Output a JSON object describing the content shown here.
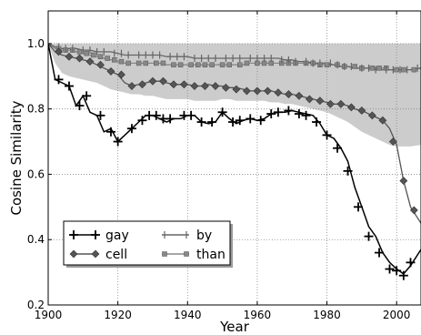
{
  "chart_data": {
    "type": "line",
    "title": "",
    "xlabel": "Year",
    "ylabel": "Cosine Similarity",
    "xlim": [
      1900,
      2007
    ],
    "ylim": [
      0.2,
      1.1
    ],
    "xticks": [
      1900,
      1920,
      1940,
      1960,
      1980,
      2000
    ],
    "yticks": [
      0.2,
      0.4,
      0.6,
      0.8,
      1.0
    ],
    "xtick_labels": [
      "1900",
      "1920",
      "1940",
      "1960",
      "1980",
      "2000"
    ],
    "ytick_labels": [
      "0.2",
      "0.4",
      "0.6",
      "0.8",
      "1.0"
    ],
    "grid": true,
    "legend_position": "lower-left",
    "series": [
      {
        "name": "gay",
        "color": "#000000",
        "marker": "plus",
        "x": [
          1900,
          1902,
          1904,
          1906,
          1908,
          1910,
          1912,
          1914,
          1916,
          1918,
          1920,
          1922,
          1924,
          1926,
          1928,
          1930,
          1932,
          1934,
          1936,
          1938,
          1940,
          1942,
          1944,
          1946,
          1948,
          1950,
          1952,
          1954,
          1956,
          1958,
          1960,
          1962,
          1964,
          1966,
          1968,
          1970,
          1972,
          1974,
          1976,
          1978,
          1980,
          1982,
          1984,
          1986,
          1988,
          1990,
          1992,
          1994,
          1996,
          1998,
          2000,
          2002,
          2004,
          2007
        ],
        "y": [
          1.0,
          0.89,
          0.88,
          0.87,
          0.81,
          0.84,
          0.79,
          0.78,
          0.73,
          0.74,
          0.7,
          0.72,
          0.74,
          0.76,
          0.78,
          0.78,
          0.77,
          0.76,
          0.77,
          0.77,
          0.78,
          0.78,
          0.76,
          0.755,
          0.76,
          0.79,
          0.77,
          0.755,
          0.765,
          0.77,
          0.765,
          0.77,
          0.785,
          0.79,
          0.79,
          0.795,
          0.79,
          0.785,
          0.78,
          0.755,
          0.72,
          0.71,
          0.68,
          0.64,
          0.56,
          0.5,
          0.44,
          0.41,
          0.36,
          0.33,
          0.31,
          0.295,
          0.32,
          0.37
        ],
        "marker_x": [
          1903,
          1906,
          1909,
          1911,
          1915,
          1918,
          1920,
          1924,
          1927,
          1929,
          1931,
          1933,
          1935,
          1939,
          1941,
          1944,
          1947,
          1950,
          1953,
          1955,
          1958,
          1961,
          1964,
          1966,
          1969,
          1972,
          1974,
          1977,
          1980,
          1983,
          1986,
          1989,
          1992,
          1995,
          1998,
          2000,
          2002,
          2004
        ],
        "marker_y": [
          0.89,
          0.87,
          0.81,
          0.84,
          0.78,
          0.73,
          0.7,
          0.74,
          0.765,
          0.78,
          0.78,
          0.77,
          0.77,
          0.78,
          0.78,
          0.76,
          0.76,
          0.79,
          0.76,
          0.765,
          0.77,
          0.765,
          0.785,
          0.79,
          0.795,
          0.785,
          0.78,
          0.76,
          0.72,
          0.68,
          0.61,
          0.5,
          0.41,
          0.36,
          0.31,
          0.305,
          0.29,
          0.33
        ],
        "band": null
      },
      {
        "name": "cell",
        "color": "#555555",
        "marker": "diamond",
        "x": [
          1900,
          1902,
          1904,
          1906,
          1908,
          1910,
          1912,
          1914,
          1916,
          1918,
          1920,
          1922,
          1924,
          1926,
          1928,
          1930,
          1932,
          1934,
          1936,
          1938,
          1940,
          1942,
          1944,
          1946,
          1948,
          1950,
          1952,
          1954,
          1956,
          1958,
          1960,
          1962,
          1964,
          1966,
          1968,
          1970,
          1972,
          1974,
          1976,
          1978,
          1980,
          1982,
          1984,
          1986,
          1988,
          1990,
          1992,
          1994,
          1996,
          1998,
          2000,
          2002,
          2004,
          2007
        ],
        "y": [
          1.0,
          0.975,
          0.965,
          0.96,
          0.955,
          0.95,
          0.945,
          0.935,
          0.925,
          0.915,
          0.905,
          0.88,
          0.87,
          0.875,
          0.88,
          0.885,
          0.885,
          0.88,
          0.875,
          0.875,
          0.875,
          0.87,
          0.87,
          0.875,
          0.87,
          0.87,
          0.865,
          0.865,
          0.86,
          0.855,
          0.855,
          0.855,
          0.855,
          0.85,
          0.845,
          0.845,
          0.84,
          0.835,
          0.83,
          0.825,
          0.82,
          0.815,
          0.815,
          0.81,
          0.8,
          0.795,
          0.785,
          0.775,
          0.765,
          0.74,
          0.69,
          0.58,
          0.5,
          0.45
        ],
        "marker_x": [
          1903,
          1906,
          1909,
          1912,
          1915,
          1918,
          1921,
          1924,
          1927,
          1930,
          1933,
          1936,
          1939,
          1942,
          1945,
          1948,
          1951,
          1954,
          1957,
          1960,
          1963,
          1966,
          1969,
          1972,
          1975,
          1978,
          1981,
          1984,
          1987,
          1990,
          1993,
          1996,
          1999,
          2002,
          2005
        ],
        "marker_y": [
          0.975,
          0.96,
          0.955,
          0.945,
          0.935,
          0.915,
          0.905,
          0.87,
          0.875,
          0.885,
          0.885,
          0.875,
          0.875,
          0.87,
          0.87,
          0.87,
          0.865,
          0.86,
          0.855,
          0.855,
          0.855,
          0.85,
          0.845,
          0.84,
          0.83,
          0.825,
          0.815,
          0.815,
          0.805,
          0.795,
          0.78,
          0.765,
          0.7,
          0.58,
          0.49
        ],
        "band": null
      },
      {
        "name": "by",
        "color": "#666666",
        "marker": "vbar",
        "x": [
          1900,
          1902,
          1904,
          1906,
          1908,
          1910,
          1912,
          1914,
          1916,
          1918,
          1920,
          1922,
          1924,
          1926,
          1928,
          1930,
          1932,
          1934,
          1936,
          1938,
          1940,
          1942,
          1944,
          1946,
          1948,
          1950,
          1952,
          1954,
          1956,
          1958,
          1960,
          1962,
          1964,
          1966,
          1968,
          1970,
          1972,
          1974,
          1976,
          1978,
          1980,
          1982,
          1984,
          1986,
          1988,
          1990,
          1992,
          1994,
          1996,
          1998,
          2000,
          2002,
          2004,
          2007
        ],
        "y": [
          1.0,
          0.99,
          0.985,
          0.985,
          0.985,
          0.98,
          0.98,
          0.975,
          0.975,
          0.975,
          0.97,
          0.965,
          0.965,
          0.965,
          0.965,
          0.965,
          0.965,
          0.96,
          0.96,
          0.96,
          0.96,
          0.955,
          0.955,
          0.955,
          0.955,
          0.955,
          0.955,
          0.955,
          0.955,
          0.955,
          0.955,
          0.955,
          0.955,
          0.955,
          0.95,
          0.95,
          0.945,
          0.945,
          0.94,
          0.94,
          0.94,
          0.935,
          0.93,
          0.93,
          0.925,
          0.925,
          0.925,
          0.92,
          0.92,
          0.92,
          0.92,
          0.92,
          0.92,
          0.925
        ],
        "marker_x": [
          1903,
          1905,
          1907,
          1910,
          1912,
          1914,
          1916,
          1919,
          1921,
          1923,
          1926,
          1928,
          1930,
          1932,
          1935,
          1937,
          1939,
          1942,
          1944,
          1946,
          1948,
          1951,
          1953,
          1955,
          1958,
          1960,
          1962,
          1964,
          1967,
          1969,
          1971,
          1974,
          1976,
          1978,
          1981,
          1983,
          1985,
          1987,
          1990,
          1992,
          1994,
          1997,
          1999,
          2001,
          2003,
          2006
        ],
        "marker_y": [
          0.99,
          0.985,
          0.985,
          0.98,
          0.98,
          0.975,
          0.975,
          0.97,
          0.97,
          0.965,
          0.965,
          0.965,
          0.965,
          0.965,
          0.96,
          0.96,
          0.96,
          0.955,
          0.955,
          0.955,
          0.955,
          0.955,
          0.955,
          0.955,
          0.955,
          0.955,
          0.955,
          0.955,
          0.95,
          0.95,
          0.945,
          0.945,
          0.94,
          0.94,
          0.94,
          0.935,
          0.93,
          0.93,
          0.925,
          0.925,
          0.92,
          0.92,
          0.92,
          0.92,
          0.92,
          0.925
        ],
        "band": {
          "fill": "#cccccc",
          "lower": [
            1.0,
            0.975,
            0.97,
            0.965,
            0.96,
            0.955,
            0.955,
            0.95,
            0.945,
            0.94,
            0.935,
            0.93,
            0.93,
            0.925,
            0.925,
            0.925,
            0.92,
            0.915,
            0.915,
            0.91,
            0.91,
            0.905,
            0.905,
            0.905,
            0.905,
            0.905,
            0.905,
            0.905,
            0.9,
            0.9,
            0.9,
            0.9,
            0.9,
            0.9,
            0.895,
            0.89,
            0.885,
            0.88,
            0.875,
            0.87,
            0.865,
            0.86,
            0.855,
            0.85,
            0.845,
            0.84,
            0.84,
            0.835,
            0.83,
            0.83,
            0.83,
            0.83,
            0.83,
            0.83
          ],
          "upper": [
            1.0,
            1.0,
            1.0,
            1.0,
            1.0,
            1.0,
            1.0,
            1.0,
            1.0,
            1.0,
            1.0,
            1.0,
            1.0,
            1.0,
            1.0,
            1.0,
            1.0,
            1.0,
            1.0,
            1.0,
            1.0,
            1.0,
            1.0,
            1.0,
            1.0,
            1.0,
            1.0,
            1.0,
            1.0,
            1.0,
            1.0,
            1.0,
            1.0,
            1.0,
            1.0,
            1.0,
            1.0,
            1.0,
            1.0,
            1.0,
            1.0,
            1.0,
            1.0,
            1.0,
            1.0,
            1.0,
            1.0,
            1.0,
            1.0,
            1.0,
            1.0,
            1.0,
            1.0,
            1.0
          ]
        }
      },
      {
        "name": "than",
        "color": "#888888",
        "marker": "square",
        "x": [
          1900,
          1902,
          1904,
          1906,
          1908,
          1910,
          1912,
          1914,
          1916,
          1918,
          1920,
          1922,
          1924,
          1926,
          1928,
          1930,
          1932,
          1934,
          1936,
          1938,
          1940,
          1942,
          1944,
          1946,
          1948,
          1950,
          1952,
          1954,
          1956,
          1958,
          1960,
          1962,
          1964,
          1966,
          1968,
          1970,
          1972,
          1974,
          1976,
          1978,
          1980,
          1982,
          1984,
          1986,
          1988,
          1990,
          1992,
          1994,
          1996,
          1998,
          2000,
          2002,
          2004,
          2007
        ],
        "y": [
          1.0,
          0.985,
          0.98,
          0.98,
          0.975,
          0.97,
          0.965,
          0.96,
          0.955,
          0.95,
          0.945,
          0.94,
          0.94,
          0.94,
          0.94,
          0.94,
          0.94,
          0.935,
          0.935,
          0.935,
          0.935,
          0.935,
          0.935,
          0.935,
          0.935,
          0.935,
          0.935,
          0.935,
          0.935,
          0.94,
          0.94,
          0.94,
          0.94,
          0.94,
          0.94,
          0.94,
          0.94,
          0.94,
          0.94,
          0.935,
          0.935,
          0.935,
          0.93,
          0.93,
          0.925,
          0.925,
          0.925,
          0.925,
          0.925,
          0.92,
          0.92,
          0.92,
          0.92,
          0.925
        ],
        "marker_x": [
          1903,
          1905,
          1907,
          1909,
          1911,
          1913,
          1915,
          1917,
          1919,
          1921,
          1923,
          1926,
          1928,
          1931,
          1933,
          1936,
          1938,
          1941,
          1943,
          1945,
          1947,
          1950,
          1952,
          1955,
          1957,
          1960,
          1962,
          1964,
          1967,
          1969,
          1971,
          1974,
          1976,
          1978,
          1980,
          1983,
          1985,
          1988,
          1990,
          1993,
          1995,
          1997,
          2000,
          2002,
          2005
        ],
        "marker_y": [
          0.985,
          0.98,
          0.98,
          0.975,
          0.97,
          0.965,
          0.96,
          0.955,
          0.95,
          0.945,
          0.94,
          0.94,
          0.94,
          0.94,
          0.94,
          0.935,
          0.935,
          0.935,
          0.935,
          0.935,
          0.935,
          0.935,
          0.935,
          0.935,
          0.94,
          0.94,
          0.94,
          0.94,
          0.94,
          0.94,
          0.94,
          0.94,
          0.94,
          0.935,
          0.935,
          0.935,
          0.93,
          0.93,
          0.925,
          0.925,
          0.925,
          0.925,
          0.92,
          0.92,
          0.92
        ],
        "band": {
          "fill": "#cccccc",
          "lower": [
            1.0,
            0.94,
            0.91,
            0.9,
            0.895,
            0.89,
            0.885,
            0.88,
            0.87,
            0.86,
            0.855,
            0.85,
            0.845,
            0.845,
            0.84,
            0.84,
            0.835,
            0.83,
            0.83,
            0.83,
            0.83,
            0.825,
            0.825,
            0.825,
            0.825,
            0.83,
            0.83,
            0.825,
            0.825,
            0.825,
            0.825,
            0.825,
            0.82,
            0.82,
            0.815,
            0.815,
            0.81,
            0.805,
            0.8,
            0.795,
            0.79,
            0.78,
            0.77,
            0.76,
            0.745,
            0.73,
            0.72,
            0.71,
            0.7,
            0.69,
            0.685,
            0.685,
            0.685,
            0.69
          ],
          "upper": null
        }
      }
    ],
    "legend": {
      "columns": 2,
      "entries": [
        {
          "label": "gay",
          "series": "gay"
        },
        {
          "label": "cell",
          "series": "cell"
        },
        {
          "label": "by",
          "series": "by"
        },
        {
          "label": "than",
          "series": "than"
        }
      ]
    }
  }
}
